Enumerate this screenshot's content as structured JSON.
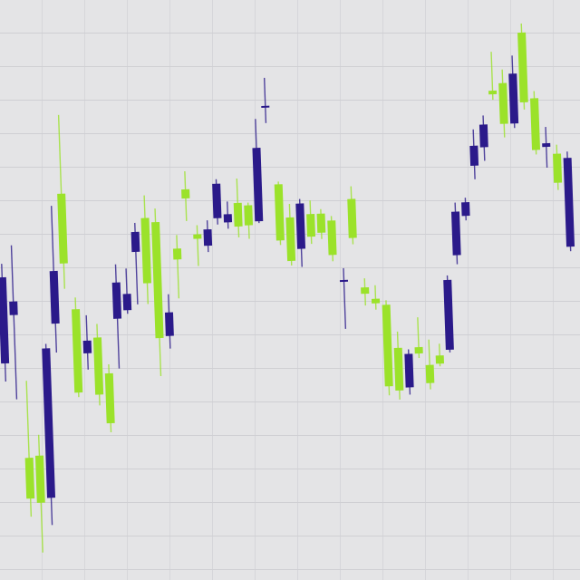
{
  "chart_data": {
    "type": "candlestick",
    "open": [
      345,
      318,
      100,
      95,
      265,
      350,
      358,
      215,
      272,
      212,
      180,
      335,
      322,
      390,
      333,
      272,
      300,
      358,
      425,
      380,
      390,
      440,
      406,
      392,
      393,
      478,
      524,
      375,
      352,
      415,
      378,
      382,
      357,
      329,
      375,
      313,
      302,
      210,
      205,
      245,
      245,
      212,
      233,
      325,
      400,
      410,
      472,
      495,
      528,
      495,
      550,
      518,
      465,
      472,
      428,
      455
    ],
    "high": [
      360,
      380,
      230,
      170,
      270,
      422,
      522,
      320,
      300,
      290,
      245,
      355,
      350,
      400,
      430,
      415,
      320,
      385,
      455,
      395,
      400,
      445,
      420,
      445,
      418,
      510,
      555,
      440,
      415,
      420,
      418,
      408,
      400,
      342,
      432,
      330,
      322,
      305,
      270,
      250,
      285,
      260,
      255,
      330,
      410,
      415,
      490,
      505,
      575,
      555,
      570,
      605,
      530,
      490,
      470,
      462
    ],
    "low": [
      230,
      210,
      80,
      40,
      70,
      260,
      330,
      210,
      240,
      200,
      170,
      240,
      300,
      310,
      310,
      230,
      260,
      315,
      400,
      350,
      365,
      395,
      390,
      380,
      378,
      395,
      505,
      370,
      347,
      345,
      370,
      375,
      350,
      275,
      368,
      300,
      295,
      200,
      195,
      200,
      240,
      205,
      230,
      245,
      342,
      390,
      435,
      455,
      522,
      480,
      490,
      510,
      460,
      445,
      420,
      352
    ],
    "close": [
      250,
      303,
      145,
      147,
      100,
      292,
      435,
      307,
      258,
      275,
      235,
      295,
      304,
      368,
      405,
      400,
      274,
      370,
      435,
      385,
      372,
      402,
      397,
      418,
      415,
      397,
      522,
      437,
      400,
      365,
      403,
      403,
      395,
      327,
      418,
      320,
      307,
      300,
      252,
      208,
      252,
      232,
      242,
      248,
      352,
      395,
      450,
      470,
      532,
      540,
      495,
      595,
      522,
      468,
      460,
      357
    ],
    "up_color": "#9be22a",
    "down_color": "#2b1a8a",
    "ylim": [
      0,
      640
    ]
  }
}
